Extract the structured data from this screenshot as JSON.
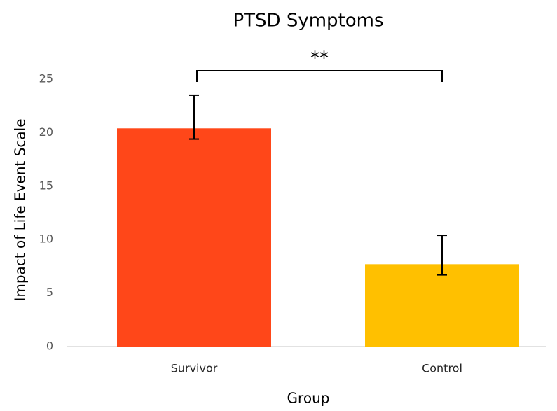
{
  "chart_data": {
    "type": "bar",
    "title": "PTSD Symptoms",
    "x_label": "Group",
    "y_label": "Impact of Life Event Scale",
    "categories": [
      "Survivor",
      "Control"
    ],
    "values": [
      20.4,
      7.7
    ],
    "error_high": [
      23.5,
      10.4
    ],
    "error_low": [
      19.4,
      6.7
    ],
    "colors": [
      "#ff4719",
      "#ffc000"
    ],
    "ylim": [
      0,
      25
    ],
    "yticks": [
      0,
      5,
      10,
      15,
      20,
      25
    ],
    "grid": false,
    "annotation": "**"
  }
}
